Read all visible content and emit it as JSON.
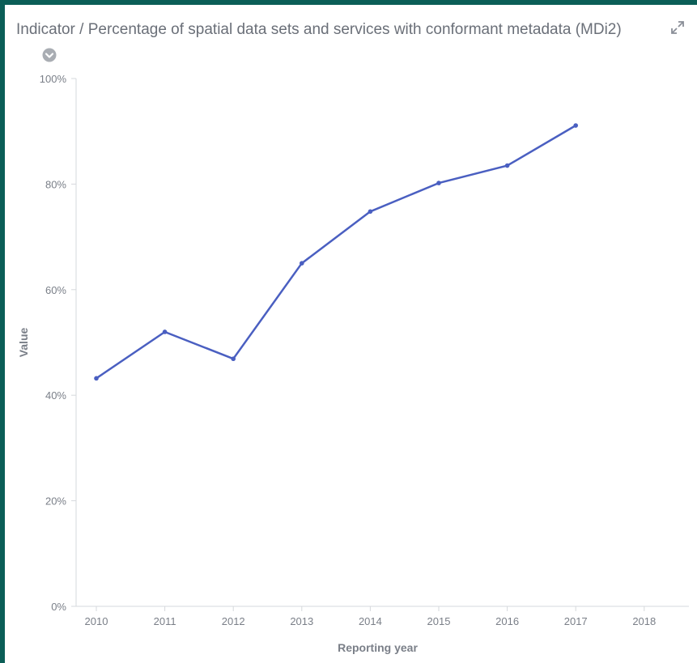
{
  "header": {
    "title": "Indicator / Percentage of spatial data sets and services with conformant metadata (MDi2)",
    "expand_icon": "expand-icon",
    "legend_toggle_icon": "chevron-down-circle-icon"
  },
  "chart_data": {
    "type": "line",
    "title": "",
    "xlabel": "Reporting year",
    "ylabel": "Value",
    "categories": [
      "2010",
      "2011",
      "2012",
      "2013",
      "2014",
      "2015",
      "2016",
      "2017",
      "2018"
    ],
    "series": [
      {
        "values": [
          43.2,
          52.0,
          46.9,
          65.0,
          74.8,
          80.2,
          83.5,
          91.1,
          null
        ]
      }
    ],
    "yticks": [
      0,
      20,
      40,
      60,
      80,
      100
    ],
    "ytick_labels": [
      "0%",
      "20%",
      "40%",
      "60%",
      "80%",
      "100%"
    ],
    "ylim": [
      0,
      100
    ],
    "grid": false,
    "color": "#4a5fc1"
  }
}
